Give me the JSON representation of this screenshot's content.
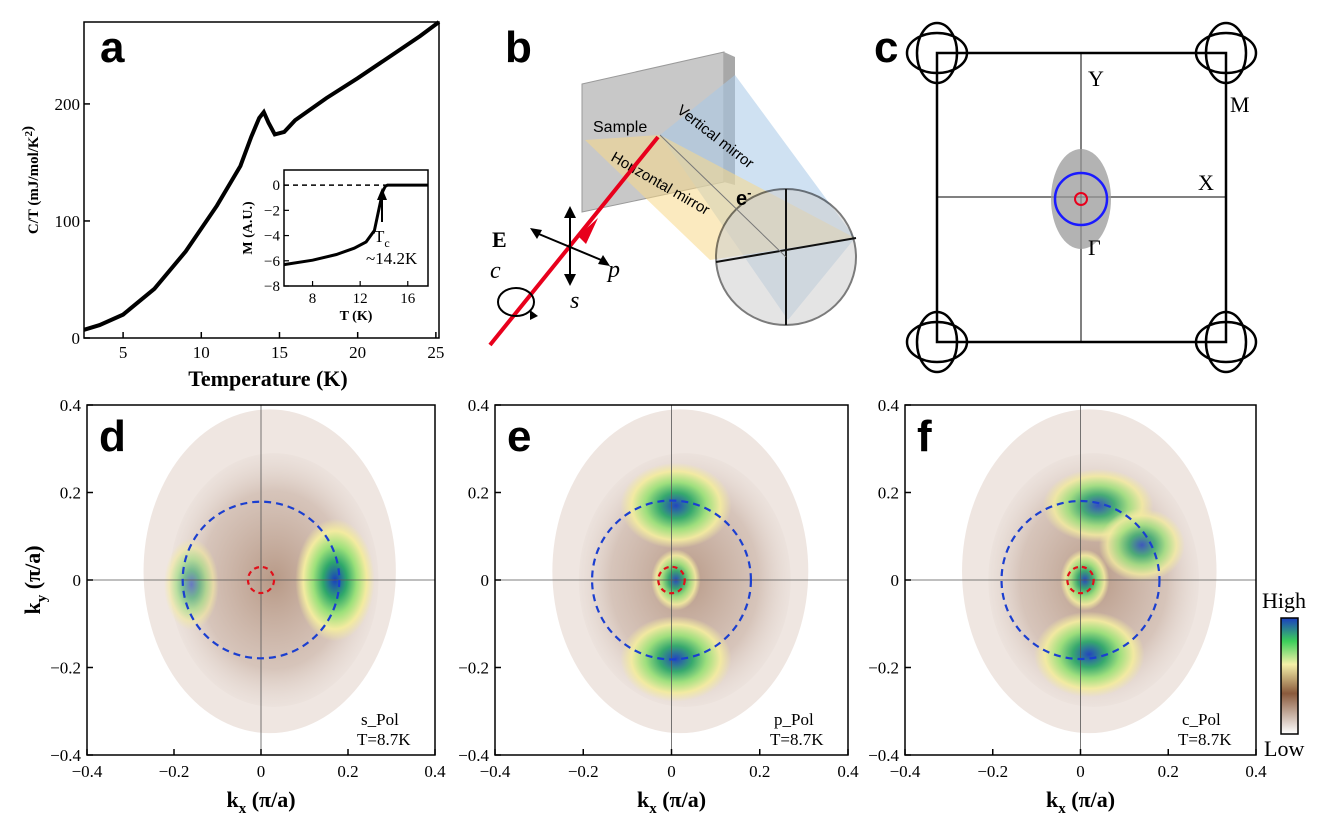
{
  "colors": {
    "red": "#e8001c",
    "blue": "#1a1aff",
    "dash_blue": "#1b3fd0",
    "dash_red": "#e0101a",
    "yellow": "#f7e3a0",
    "sky": "#a8c8e8",
    "gray": "#bdbdbd"
  },
  "panels": {
    "a": "a",
    "b": "b",
    "c": "c",
    "d": "d",
    "e": "e",
    "f": "f"
  },
  "chart_data": [
    {
      "id": "a",
      "type": "line",
      "title": "",
      "xlabel": "Temperature (K)",
      "ylabel": "C/T (mJ/mol/K²)",
      "xlim": [
        2.5,
        25.2
      ],
      "ylim": [
        0,
        270
      ],
      "xticks": [
        5,
        10,
        15,
        20,
        25
      ],
      "yticks": [
        0,
        100,
        200
      ],
      "x": [
        2.5,
        3.5,
        5,
        7,
        9,
        11,
        12.5,
        13.2,
        13.7,
        14.0,
        14.3,
        14.7,
        15.3,
        16,
        18,
        20,
        22,
        24,
        25.2
      ],
      "y": [
        7,
        11,
        20,
        42,
        74,
        113,
        147,
        172,
        188,
        193,
        184,
        174,
        176,
        186,
        205,
        222,
        240,
        258,
        270
      ],
      "inset": {
        "type": "line",
        "xlabel": "T (K)",
        "ylabel": "M (A.U.)",
        "xlim": [
          5.6,
          17.7
        ],
        "ylim": [
          -8,
          1.2
        ],
        "xticks": [
          8,
          12,
          16
        ],
        "yticks": [
          0,
          -2,
          -4,
          -6,
          -8
        ],
        "x": [
          5.6,
          8,
          10,
          11.5,
          12.5,
          13.2,
          13.6,
          13.9,
          14.1,
          14.3,
          17.7
        ],
        "y": [
          -6.3,
          -5.95,
          -5.5,
          -5.0,
          -4.5,
          -3.6,
          -1.8,
          -0.5,
          -0.1,
          0,
          0
        ],
        "reference_line": 0,
        "annotation": "T",
        "annotation_sub": "c",
        "annotation_value": "~14.2K"
      }
    },
    {
      "id": "d",
      "type": "heatmap",
      "xlabel": "k",
      "xlabel_sub": "x",
      "xlabel_unit": " (π/a)",
      "ylabel": "k",
      "ylabel_sub": "y",
      "ylabel_unit": " (π/a)",
      "xlim": [
        -0.4,
        0.4
      ],
      "ylim": [
        -0.4,
        0.4
      ],
      "xticks": [
        -0.4,
        -0.2,
        0,
        0.2,
        0.4
      ],
      "yticks": [
        -0.4,
        -0.2,
        0,
        0.2,
        0.4
      ],
      "xtick_labels": [
        "-0.4",
        "-0.2",
        "0",
        "0.2",
        "0.4"
      ],
      "ytick_labels": [
        "-0.4",
        "-0.2",
        "0",
        "0.2",
        "0.4"
      ],
      "polarization": "s_Pol",
      "temperature": "T=8.7K",
      "circle_radii": [
        0.18,
        0.03
      ],
      "hot_spots": [
        {
          "kx": 0.17,
          "ky": 0.0,
          "rx": 0.065,
          "ry": 0.1,
          "intensity": 1.0
        },
        {
          "kx": -0.16,
          "ky": -0.01,
          "rx": 0.045,
          "ry": 0.075,
          "intensity": 0.6
        }
      ]
    },
    {
      "id": "e",
      "type": "heatmap",
      "xlabel": "k",
      "xlabel_sub": "x",
      "xlabel_unit": " (π/a)",
      "xlim": [
        -0.4,
        0.4
      ],
      "ylim": [
        -0.4,
        0.4
      ],
      "xticks": [
        -0.4,
        -0.2,
        0,
        0.2,
        0.4
      ],
      "yticks": [
        -0.4,
        -0.2,
        0,
        0.2,
        0.4
      ],
      "xtick_labels": [
        "-0.4",
        "-0.2",
        "0",
        "0.2",
        "0.4"
      ],
      "ytick_labels": [
        "-0.4",
        "-0.2",
        "0",
        "0.2",
        "0.4"
      ],
      "polarization": "p_Pol",
      "temperature": "T=8.7K",
      "circle_radii": [
        0.18,
        0.03
      ],
      "hot_spots": [
        {
          "kx": 0.01,
          "ky": 0.17,
          "rx": 0.09,
          "ry": 0.07,
          "intensity": 0.95
        },
        {
          "kx": 0.01,
          "ky": -0.18,
          "rx": 0.09,
          "ry": 0.07,
          "intensity": 0.95
        },
        {
          "kx": 0.01,
          "ky": 0.0,
          "rx": 0.04,
          "ry": 0.05,
          "intensity": 0.9
        }
      ]
    },
    {
      "id": "f",
      "type": "heatmap",
      "xlabel": "k",
      "xlabel_sub": "x",
      "xlabel_unit": " (π/a)",
      "xlim": [
        -0.4,
        0.4
      ],
      "ylim": [
        -0.4,
        0.4
      ],
      "xticks": [
        -0.4,
        -0.2,
        0,
        0.2,
        0.4
      ],
      "yticks": [
        -0.4,
        -0.2,
        0,
        0.2,
        0.4
      ],
      "xtick_labels": [
        "-0.4",
        "-0.2",
        "0",
        "0.2",
        "0.4"
      ],
      "ytick_labels": [
        "-0.4",
        "-0.2",
        "0",
        "0.2",
        "0.4"
      ],
      "polarization": "c_Pol",
      "temperature": "T=8.7K",
      "circle_radii": [
        0.18,
        0.03
      ],
      "hot_spots": [
        {
          "kx": 0.04,
          "ky": 0.17,
          "rx": 0.09,
          "ry": 0.06,
          "intensity": 0.85
        },
        {
          "kx": 0.14,
          "ky": 0.08,
          "rx": 0.07,
          "ry": 0.06,
          "intensity": 0.8
        },
        {
          "kx": 0.02,
          "ky": -0.17,
          "rx": 0.09,
          "ry": 0.07,
          "intensity": 0.95
        },
        {
          "kx": 0.01,
          "ky": 0.0,
          "rx": 0.04,
          "ry": 0.05,
          "intensity": 0.9
        }
      ]
    }
  ],
  "panel_b": {
    "sample": "Sample",
    "vertical_mirror": "Vertical mirror",
    "horizontal_mirror": "Horizontal mirror",
    "electron": "e",
    "electron_sup": "-",
    "E": "E",
    "c": "c",
    "p": "p",
    "s": "s"
  },
  "panel_c": {
    "Y": "Y",
    "M": "M",
    "X": "X",
    "Gamma": "Γ"
  },
  "colorbar": {
    "high": "High",
    "low": "Low",
    "stops": [
      "#ffffff",
      "#8a5a3c",
      "#f5f0a8",
      "#3ccf5a",
      "#1a3fc0"
    ]
  }
}
